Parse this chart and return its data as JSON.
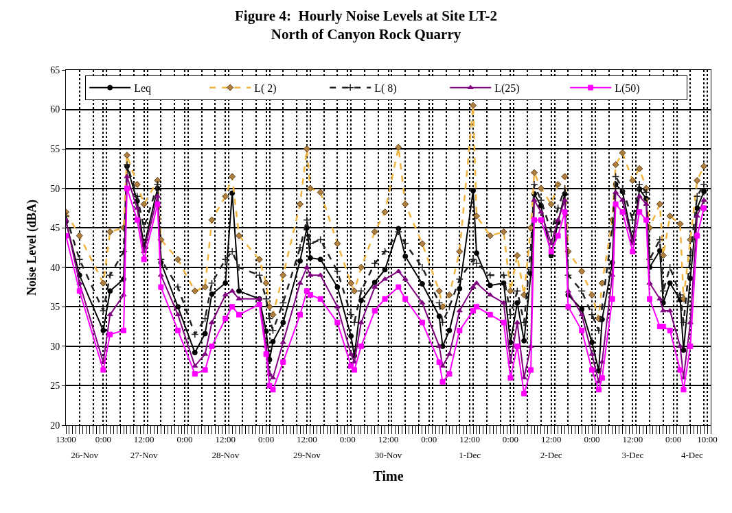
{
  "chart_data": {
    "type": "line",
    "title": "Figure 4:  Hourly Noise Levels at Site LT-2\nNorth of Canyon Rock Quarry",
    "xlabel": "Time",
    "ylabel": "Noise Level (dBA)",
    "x": [
      "--11-26T13:00",
      "--11-26T17:00",
      "--11-27T00:00",
      "--11-27T02:00",
      "--11-27T06:00",
      "--11-27T07:00",
      "--11-27T10:00",
      "--11-27T12:00",
      "--11-27T16:00",
      "--11-27T17:00",
      "--11-27T22:00",
      "--11-28T03:00",
      "--11-28T06:00",
      "--11-28T08:00",
      "--11-28T12:00",
      "--11-28T14:00",
      "--11-28T16:00",
      "--11-28T22:00",
      "--11-29T00:00",
      "--11-29T01:00",
      "--11-29T02:00",
      "--11-29T05:00",
      "--11-29T10:00",
      "--11-29T12:00",
      "--11-29T13:00",
      "--11-29T16:00",
      "--11-29T21:00",
      "--11-30T01:00",
      "--11-30T02:00",
      "--11-30T04:00",
      "--11-30T08:00",
      "--11-30T11:00",
      "--11-30T15:00",
      "--11-30T17:00",
      "--11-30T22:00",
      "--12-01T03:00",
      "--12-01T04:00",
      "--12-01T06:00",
      "--12-01T09:00",
      "--12-01T13:00",
      "--12-01T14:00",
      "--12-01T18:00",
      "--12-01T22:00",
      "--12-02T00:00",
      "--12-02T02:00",
      "--12-02T04:00",
      "--12-02T06:00",
      "--12-02T07:00",
      "--12-02T09:00",
      "--12-02T12:00",
      "--12-02T14:00",
      "--12-02T16:00",
      "--12-02T17:00",
      "--12-02T21:00",
      "--12-03T00:00",
      "--12-03T02:00",
      "--12-03T03:00",
      "--12-03T06:00",
      "--12-03T07:00",
      "--12-03T09:00",
      "--12-03T12:00",
      "--12-03T14:00",
      "--12-03T16:00",
      "--12-03T17:00",
      "--12-03T20:00",
      "--12-03T21:00",
      "--12-03T23:00",
      "--12-04T02:00",
      "--12-04T03:00",
      "--12-04T05:00",
      "--12-04T07:00",
      "--12-04T09:00"
    ],
    "series": [
      {
        "name": "Leq",
        "color": "#000000",
        "marker": "circle",
        "line_style": "solid",
        "values": [
          45.8,
          39,
          32,
          37,
          38.5,
          52.8,
          48.4,
          42.6,
          50,
          40.6,
          35,
          29.2,
          31.6,
          36.6,
          38,
          49.4,
          37,
          36,
          31.9,
          28.3,
          30.6,
          33,
          40.8,
          45,
          41.2,
          41,
          37.5,
          31.3,
          28.8,
          35.8,
          38.1,
          39.7,
          44.9,
          41.4,
          37.9,
          33.8,
          30,
          32,
          37.3,
          49.7,
          41.8,
          37.7,
          38,
          30.5,
          35.5,
          30.7,
          39.2,
          49.3,
          47.8,
          41.5,
          45.7,
          49.3,
          36.5,
          34.7,
          30.5,
          26.9,
          33.4,
          40.6,
          50.5,
          49.6,
          43.3,
          49.9,
          48.7,
          40,
          42.1,
          35.5,
          38,
          35.9,
          29.5,
          38.6,
          47.5,
          49.6
        ]
      },
      {
        "name": "L( 2)",
        "color": "#f0b440",
        "marker": "diamond",
        "line_style": "dashed",
        "values": [
          47,
          44,
          38,
          44.5,
          45,
          54.2,
          50.5,
          48,
          51,
          43.5,
          41,
          37,
          37.5,
          46,
          49,
          51.5,
          44,
          41,
          38,
          35,
          34,
          39,
          48,
          55,
          50,
          49.5,
          43,
          38,
          37,
          40,
          44.5,
          47,
          55.2,
          48,
          43,
          37,
          35,
          36.5,
          42,
          60.5,
          46.5,
          44,
          44.5,
          37,
          41.5,
          36.5,
          45,
          52,
          50,
          48,
          50.5,
          51.5,
          42,
          39.5,
          36.5,
          33.5,
          38,
          46,
          53,
          54.5,
          51,
          52.5,
          50,
          45,
          48,
          41.5,
          46.5,
          45.5,
          36,
          43.5,
          51,
          52.8
        ]
      },
      {
        "name": "L( 8)",
        "color": "#202020",
        "marker": "cross",
        "line_style": "dashed",
        "values": [
          46.5,
          41,
          34.5,
          39,
          42,
          53,
          49,
          45,
          50.5,
          41,
          37.5,
          31.5,
          33.5,
          38,
          41,
          42,
          40,
          39,
          36,
          33.5,
          32,
          35.5,
          42.5,
          46,
          43,
          43.5,
          39.5,
          34,
          33,
          37,
          40.5,
          42,
          44.5,
          43,
          40,
          35.5,
          33,
          35,
          38.5,
          41,
          40.5,
          39,
          39,
          34,
          37,
          33,
          42.5,
          50.5,
          48.5,
          44.5,
          47.5,
          50,
          39,
          37,
          34,
          32,
          35,
          45,
          51.5,
          50,
          46,
          50.5,
          49.5,
          41,
          43.5,
          37,
          40,
          36.5,
          33,
          41.5,
          49,
          50.5
        ]
      },
      {
        "name": "L(25)",
        "color": "#800080",
        "marker": "triangle",
        "line_style": "solid",
        "values": [
          46,
          38,
          28,
          34,
          36.5,
          51.5,
          47.5,
          42,
          49,
          39,
          34,
          27.5,
          29,
          33,
          36.5,
          37,
          36,
          36,
          30,
          26.5,
          26,
          30.5,
          38,
          40,
          39,
          39,
          35,
          29,
          28,
          33,
          37.5,
          38.5,
          39.5,
          38.5,
          35.5,
          30,
          27.5,
          29,
          34.5,
          37.5,
          38,
          36.5,
          35.5,
          28,
          33,
          26,
          30,
          48.5,
          47,
          43,
          46,
          48.5,
          37,
          34,
          29,
          25.5,
          28,
          39,
          49.5,
          48.5,
          43,
          49,
          48,
          38,
          36,
          34.5,
          34.5,
          30,
          26,
          33,
          46.5,
          48.5
        ]
      },
      {
        "name": "L(50)",
        "color": "#ff00ff",
        "marker": "square",
        "line_style": "solid",
        "values": [
          44,
          37,
          27,
          31.5,
          32,
          50,
          46,
          41,
          48,
          37.5,
          32,
          26.5,
          27,
          30,
          33.5,
          35,
          34,
          35.3,
          29,
          25,
          24.5,
          28,
          34,
          37,
          36.5,
          36,
          33,
          27.5,
          27,
          30,
          34.5,
          36,
          37.5,
          36,
          33,
          28,
          25.5,
          26.5,
          32,
          34.5,
          35,
          34,
          33,
          26,
          30,
          24,
          27,
          46,
          46,
          42,
          44,
          47,
          35,
          32,
          27,
          24.5,
          26,
          36,
          48,
          47,
          42,
          47,
          46,
          36,
          32.5,
          32.5,
          32,
          27,
          24.5,
          30,
          44,
          47.5
        ]
      }
    ],
    "xlim": [
      "--11-26T13:00",
      "--12-04T11:00"
    ],
    "xticks": [
      {
        "value": "--11-26T13:00",
        "label": "13:00"
      },
      {
        "value": "--11-26T17:00",
        "label": null
      },
      {
        "value": "--11-26T21:00",
        "label": null
      },
      {
        "value": "--11-27T00:00",
        "label": "0:00"
      },
      {
        "value": "--11-27T01:00",
        "label": null
      },
      {
        "value": "--11-27T05:00",
        "label": null
      },
      {
        "value": "--11-27T09:00",
        "label": null
      },
      {
        "value": "--11-27T12:00",
        "label": "12:00"
      },
      {
        "value": "--11-27T13:00",
        "label": null
      },
      {
        "value": "--11-27T17:00",
        "label": null
      },
      {
        "value": "--11-27T21:00",
        "label": null
      },
      {
        "value": "--11-28T00:00",
        "label": "0:00"
      },
      {
        "value": "--11-28T01:00",
        "label": null
      },
      {
        "value": "--11-28T05:00",
        "label": null
      },
      {
        "value": "--11-28T09:00",
        "label": null
      },
      {
        "value": "--11-28T12:00",
        "label": "12:00"
      },
      {
        "value": "--11-28T13:00",
        "label": null
      },
      {
        "value": "--11-28T17:00",
        "label": null
      },
      {
        "value": "--11-28T21:00",
        "label": null
      },
      {
        "value": "--11-29T00:00",
        "label": "0:00"
      },
      {
        "value": "--11-29T01:00",
        "label": null
      },
      {
        "value": "--11-29T05:00",
        "label": null
      },
      {
        "value": "--11-29T09:00",
        "label": null
      },
      {
        "value": "--11-29T12:00",
        "label": "12:00"
      },
      {
        "value": "--11-29T13:00",
        "label": null
      },
      {
        "value": "--11-29T17:00",
        "label": null
      },
      {
        "value": "--11-29T21:00",
        "label": null
      },
      {
        "value": "--11-30T00:00",
        "label": "0:00"
      },
      {
        "value": "--11-30T01:00",
        "label": null
      },
      {
        "value": "--11-30T05:00",
        "label": null
      },
      {
        "value": "--11-30T09:00",
        "label": null
      },
      {
        "value": "--11-30T12:00",
        "label": "12:00"
      },
      {
        "value": "--11-30T13:00",
        "label": null
      },
      {
        "value": "--11-30T17:00",
        "label": null
      },
      {
        "value": "--11-30T21:00",
        "label": null
      },
      {
        "value": "--12-01T00:00",
        "label": "0:00"
      },
      {
        "value": "--12-01T01:00",
        "label": null
      },
      {
        "value": "--12-01T05:00",
        "label": null
      },
      {
        "value": "--12-01T09:00",
        "label": null
      },
      {
        "value": "--12-01T12:00",
        "label": "12:00"
      },
      {
        "value": "--12-01T13:00",
        "label": null
      },
      {
        "value": "--12-01T17:00",
        "label": null
      },
      {
        "value": "--12-01T21:00",
        "label": null
      },
      {
        "value": "--12-02T00:00",
        "label": "0:00"
      },
      {
        "value": "--12-02T01:00",
        "label": null
      },
      {
        "value": "--12-02T05:00",
        "label": null
      },
      {
        "value": "--12-02T09:00",
        "label": null
      },
      {
        "value": "--12-02T12:00",
        "label": "12:00"
      },
      {
        "value": "--12-02T13:00",
        "label": null
      },
      {
        "value": "--12-02T17:00",
        "label": null
      },
      {
        "value": "--12-02T21:00",
        "label": null
      },
      {
        "value": "--12-03T00:00",
        "label": "0:00"
      },
      {
        "value": "--12-03T01:00",
        "label": null
      },
      {
        "value": "--12-03T05:00",
        "label": null
      },
      {
        "value": "--12-03T09:00",
        "label": null
      },
      {
        "value": "--12-03T12:00",
        "label": "12:00"
      },
      {
        "value": "--12-03T13:00",
        "label": null
      },
      {
        "value": "--12-03T17:00",
        "label": null
      },
      {
        "value": "--12-03T21:00",
        "label": null
      },
      {
        "value": "--12-04T00:00",
        "label": "0:00"
      },
      {
        "value": "--12-04T01:00",
        "label": null
      },
      {
        "value": "--12-04T05:00",
        "label": null
      },
      {
        "value": "--12-04T09:00",
        "label": null
      },
      {
        "value": "--12-04T10:00",
        "label": "10:00"
      }
    ],
    "x2lim": [
      "--11-26T13:00",
      "--12-04T11:00"
    ],
    "x2ticks": [
      {
        "value": "--11-26T18:30",
        "label": "26-Nov"
      },
      {
        "value": "--11-27T12:00",
        "label": "27-Nov"
      },
      {
        "value": "--11-28T12:00",
        "label": "28-Nov"
      },
      {
        "value": "--11-29T12:00",
        "label": "29-Nov"
      },
      {
        "value": "--11-30T12:00",
        "label": "30-Nov"
      },
      {
        "value": "--12-01T12:00",
        "label": "1-Dec"
      },
      {
        "value": "--12-02T12:00",
        "label": "2-Dec"
      },
      {
        "value": "--12-03T12:00",
        "label": "3-Dec"
      },
      {
        "value": "--12-04T05:30",
        "label": "4-Dec"
      }
    ],
    "ylim": [
      20,
      65
    ],
    "yticks": [
      20,
      25,
      30,
      35,
      40,
      45,
      50,
      55,
      60,
      65
    ],
    "grid": true,
    "legend": "top"
  }
}
